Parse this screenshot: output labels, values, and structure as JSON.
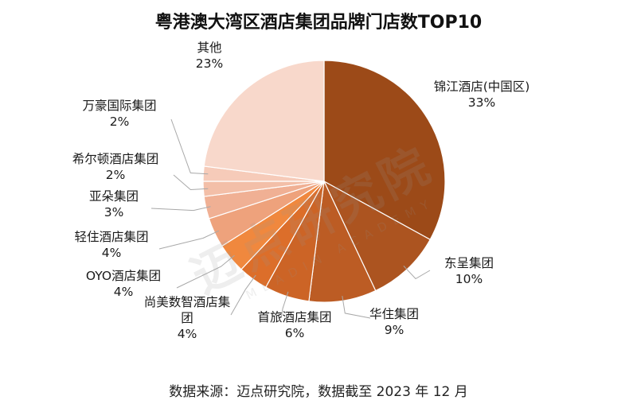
{
  "chart_data": {
    "type": "pie",
    "title": "粤港澳大湾区酒店集团品牌门店数TOP10",
    "slices": [
      {
        "label_lines": [
          "锦江酒店(中国区)"
        ],
        "pct_text": "33%",
        "value": 33,
        "color": "#9c4a18"
      },
      {
        "label_lines": [
          "东呈集团"
        ],
        "pct_text": "10%",
        "value": 10,
        "color": "#ac5420"
      },
      {
        "label_lines": [
          "华住集团"
        ],
        "pct_text": "9%",
        "value": 9,
        "color": "#bc5c24"
      },
      {
        "label_lines": [
          "首旅酒店集团"
        ],
        "pct_text": "6%",
        "value": 6,
        "color": "#cc6426"
      },
      {
        "label_lines": [
          "尚美数智酒店集",
          "团"
        ],
        "pct_text": "4%",
        "value": 4,
        "color": "#dc6e2a"
      },
      {
        "label_lines": [
          "OYO酒店集团"
        ],
        "pct_text": "4%",
        "value": 4,
        "color": "#f0883e"
      },
      {
        "label_lines": [
          "轻住酒店集团"
        ],
        "pct_text": "4%",
        "value": 4,
        "color": "#eea27c"
      },
      {
        "label_lines": [
          "亚朵集团"
        ],
        "pct_text": "3%",
        "value": 3,
        "color": "#f0b094"
      },
      {
        "label_lines": [
          "希尔顿酒店集团"
        ],
        "pct_text": "2%",
        "value": 2,
        "color": "#f3bfa8"
      },
      {
        "label_lines": [
          "万豪国际集团"
        ],
        "pct_text": "2%",
        "value": 2,
        "color": "#f6cbb9"
      },
      {
        "label_lines": [
          "其他"
        ],
        "pct_text": "23%",
        "value": 23,
        "color": "#f8d8cb"
      }
    ]
  },
  "watermark": {
    "main": "迈点研究院",
    "sub": "MEADIN ACADEMY"
  },
  "footer": "数据来源：迈点研究院，数据截至 2023 年 12 月"
}
